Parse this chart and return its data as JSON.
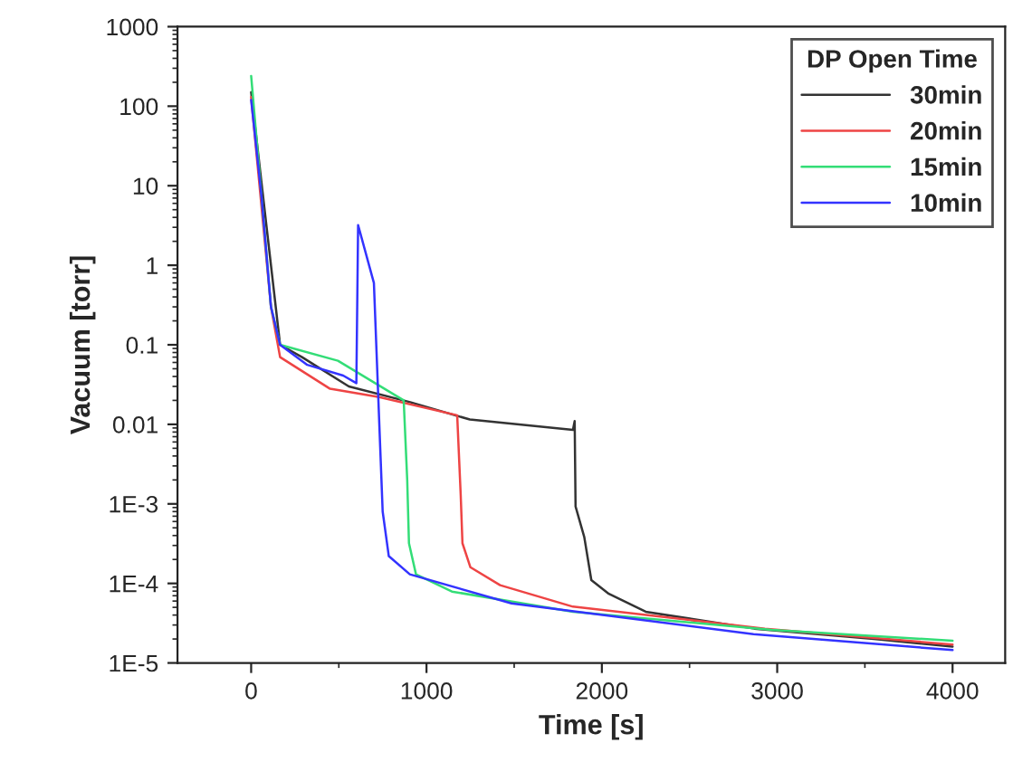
{
  "chart_data": {
    "type": "line",
    "xlabel": "Time [s]",
    "ylabel": "Vacuum [torr]",
    "legend_title": "DP Open Time",
    "legend": "top right",
    "log": "y",
    "grid": false,
    "marker": "none",
    "line_style": "solid",
    "xlim": [
      -420,
      4300
    ],
    "xticks": [
      0,
      1000,
      2000,
      3000,
      4000
    ],
    "ylim": [
      1e-05,
      1000
    ],
    "yticks": [
      1000,
      100,
      10,
      1,
      0.1,
      0.01,
      {
        "value": 0.001,
        "label": "1E-3"
      },
      {
        "value": 0.0001,
        "label": "1E-4"
      },
      {
        "value": 1e-05,
        "label": "1E-5"
      }
    ],
    "series": [
      {
        "name": "30min",
        "color": "#333333",
        "x": [
          0,
          165,
          290,
          557,
          907,
          1247,
          1835,
          1845,
          1850,
          1900,
          1940,
          2040,
          2250,
          2870,
          3550,
          4000
        ],
        "values": [
          150,
          0.1,
          0.07,
          0.03,
          0.019,
          0.0115,
          0.0085,
          0.011,
          0.00093,
          0.00038,
          0.00011,
          7.4e-05,
          4.4e-05,
          2.7e-05,
          2e-05,
          1.6e-05
        ]
      },
      {
        "name": "20min",
        "color": "#ee4444",
        "x": [
          0,
          113,
          165,
          450,
          730,
          1175,
          1195,
          1205,
          1250,
          1420,
          1835,
          2930,
          4000
        ],
        "values": [
          130,
          0.3,
          0.07,
          0.028,
          0.022,
          0.013,
          0.0013,
          0.00032,
          0.00016,
          9.5e-05,
          5.1e-05,
          2.7e-05,
          1.7e-05
        ]
      },
      {
        "name": "15min",
        "color": "#33dd77",
        "x": [
          0,
          60,
          113,
          165,
          495,
          870,
          890,
          900,
          940,
          1145,
          1835,
          2970,
          4000
        ],
        "values": [
          240,
          7,
          0.3,
          0.1,
          0.063,
          0.02,
          0.002,
          0.00032,
          0.00013,
          7.9e-05,
          4.4e-05,
          2.6e-05,
          1.9e-05
        ]
      },
      {
        "name": "10min",
        "color": "#3333ff",
        "x": [
          0,
          60,
          113,
          165,
          320,
          525,
          600,
          610,
          700,
          750,
          785,
          905,
          1485,
          2865,
          4000
        ],
        "values": [
          120,
          7,
          0.3,
          0.1,
          0.056,
          0.041,
          0.033,
          3.2,
          0.6,
          0.0008,
          0.00022,
          0.00013,
          5.6e-05,
          2.3e-05,
          1.45e-05
        ]
      }
    ]
  }
}
